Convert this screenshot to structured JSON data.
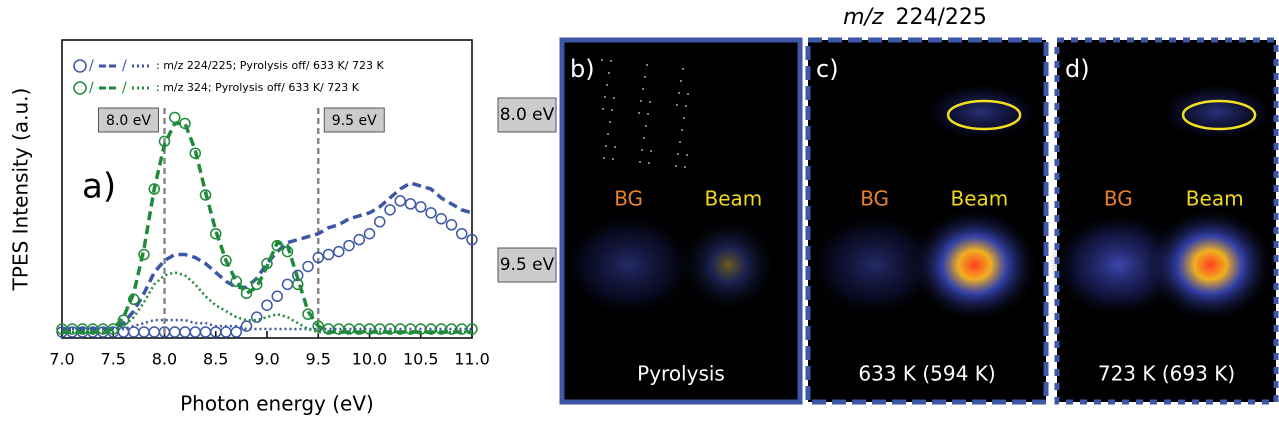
{
  "chart_data": {
    "type": "line",
    "panel_label": "a)",
    "xlabel": "Photon energy (eV)",
    "ylabel": "TPES Intensity (a.u.)",
    "x": [
      7.0,
      7.1,
      7.2,
      7.3,
      7.4,
      7.5,
      7.6,
      7.7,
      7.8,
      7.9,
      8.0,
      8.1,
      8.2,
      8.3,
      8.4,
      8.5,
      8.6,
      8.7,
      8.8,
      8.9,
      9.0,
      9.1,
      9.2,
      9.3,
      9.4,
      9.5,
      9.6,
      9.7,
      9.8,
      9.9,
      10.0,
      10.1,
      10.2,
      10.3,
      10.4,
      10.5,
      10.6,
      10.7,
      10.8,
      10.9,
      11.0
    ],
    "xlim": [
      7.0,
      11.0
    ],
    "xticks": [
      {
        "value": 7.0,
        "label": "7.0"
      },
      {
        "value": 7.5,
        "label": "7.5"
      },
      {
        "value": 8.0,
        "label": "8.0"
      },
      {
        "value": 8.5,
        "label": "8.5"
      },
      {
        "value": 9.0,
        "label": "9.0"
      },
      {
        "value": 9.5,
        "label": "9.5"
      },
      {
        "value": 10.0,
        "label": "10.0"
      },
      {
        "value": 10.5,
        "label": "10.5"
      },
      {
        "value": 11.0,
        "label": "11.0"
      }
    ],
    "ylim": [
      0,
      1
    ],
    "legend": [
      {
        "separator": "/",
        "label": ": m/z 224/225; Pyrolysis off/ 633 K/ 723 K"
      },
      {
        "separator": "/",
        "label": ": m/z 324; Pyrolysis off/ 633 K/ 723 K"
      }
    ],
    "annotations": [
      {
        "x": 8.0,
        "label": "8.0 eV"
      },
      {
        "x": 9.5,
        "label": "9.5 eV"
      }
    ],
    "series": [
      {
        "color": "#3d56a6",
        "style": "circle",
        "legend": 0,
        "values": [
          0.02,
          0.02,
          0.02,
          0.02,
          0.02,
          0.02,
          0.02,
          0.02,
          0.02,
          0.02,
          0.02,
          0.02,
          0.02,
          0.02,
          0.02,
          0.02,
          0.02,
          0.02,
          0.04,
          0.07,
          0.11,
          0.14,
          0.18,
          0.21,
          0.24,
          0.27,
          0.28,
          0.29,
          0.31,
          0.33,
          0.35,
          0.39,
          0.43,
          0.46,
          0.45,
          0.44,
          0.42,
          0.4,
          0.38,
          0.35,
          0.33
        ]
      },
      {
        "color": "#3d56a6",
        "style": "dashed",
        "legend": 0,
        "values": [
          0.03,
          0.03,
          0.03,
          0.03,
          0.03,
          0.03,
          0.05,
          0.09,
          0.15,
          0.22,
          0.26,
          0.28,
          0.28,
          0.27,
          0.25,
          0.22,
          0.19,
          0.17,
          0.17,
          0.2,
          0.25,
          0.29,
          0.32,
          0.33,
          0.34,
          0.35,
          0.37,
          0.38,
          0.4,
          0.41,
          0.42,
          0.44,
          0.47,
          0.5,
          0.52,
          0.51,
          0.5,
          0.47,
          0.45,
          0.43,
          0.42
        ]
      },
      {
        "color": "#3d56a6",
        "style": "dotted",
        "legend": 0,
        "values": [
          0.03,
          0.03,
          0.03,
          0.03,
          0.03,
          0.03,
          0.03,
          0.04,
          0.05,
          0.06,
          0.06,
          0.06,
          0.06,
          0.05,
          0.05,
          0.04,
          0.04,
          0.04,
          0.03,
          0.03,
          0.03,
          0.03,
          0.03,
          0.03,
          0.03,
          0.03,
          0.03,
          0.03,
          0.03,
          0.03,
          0.03,
          0.03,
          0.03,
          0.03,
          0.03,
          0.03,
          0.03,
          0.03,
          0.03,
          0.03,
          0.03
        ]
      },
      {
        "color": "#1f8a3a",
        "style": "circle",
        "legend": 1,
        "values": [
          0.03,
          0.03,
          0.03,
          0.03,
          0.03,
          0.03,
          0.06,
          0.13,
          0.28,
          0.5,
          0.66,
          0.74,
          0.72,
          0.62,
          0.48,
          0.35,
          0.26,
          0.19,
          0.15,
          0.18,
          0.25,
          0.31,
          0.29,
          0.18,
          0.08,
          0.04,
          0.03,
          0.03,
          0.03,
          0.03,
          0.03,
          0.03,
          0.03,
          0.03,
          0.03,
          0.03,
          0.03,
          0.03,
          0.03,
          0.03,
          0.03
        ]
      },
      {
        "color": "#1f8a3a",
        "style": "dashed",
        "legend": 1,
        "values": [
          0.02,
          0.02,
          0.02,
          0.02,
          0.02,
          0.03,
          0.07,
          0.15,
          0.3,
          0.5,
          0.65,
          0.72,
          0.72,
          0.63,
          0.49,
          0.36,
          0.26,
          0.19,
          0.15,
          0.17,
          0.24,
          0.32,
          0.31,
          0.2,
          0.09,
          0.04,
          0.02,
          0.02,
          0.02,
          0.02,
          0.02,
          0.02,
          0.02,
          0.02,
          0.02,
          0.02,
          0.02,
          0.02,
          0.02,
          0.02,
          0.02
        ]
      },
      {
        "color": "#1f8a3a",
        "style": "dotted",
        "legend": 1,
        "values": [
          0.02,
          0.02,
          0.02,
          0.02,
          0.02,
          0.02,
          0.04,
          0.07,
          0.12,
          0.18,
          0.21,
          0.22,
          0.21,
          0.18,
          0.14,
          0.11,
          0.09,
          0.07,
          0.06,
          0.06,
          0.07,
          0.08,
          0.07,
          0.05,
          0.03,
          0.02,
          0.02,
          0.02,
          0.02,
          0.02,
          0.02,
          0.02,
          0.02,
          0.02,
          0.02,
          0.02,
          0.02,
          0.02,
          0.02,
          0.02,
          0.02
        ]
      }
    ]
  },
  "images": {
    "title_prefix": "m/z",
    "title": "224/225",
    "energy_labels": [
      "8.0 eV",
      "9.5 eV"
    ],
    "panels": [
      {
        "label": "b)",
        "bg": "BG",
        "beam": "Beam",
        "caption": "Pyrolysis"
      },
      {
        "label": "c)",
        "bg": "BG",
        "beam": "Beam",
        "caption": "633 K (594 K)"
      },
      {
        "label": "d)",
        "bg": "BG",
        "beam": "Beam",
        "caption": "723 K (693 K)"
      }
    ]
  }
}
